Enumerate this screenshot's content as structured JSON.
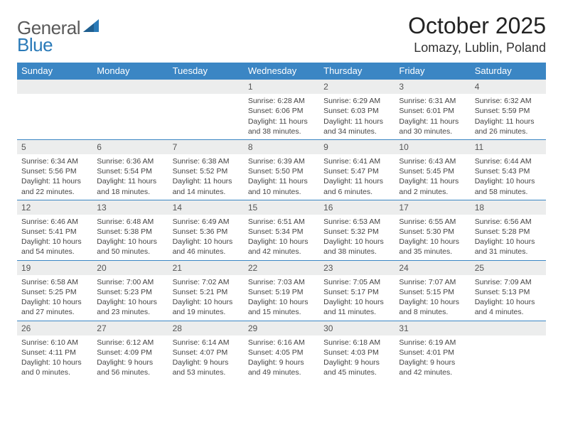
{
  "logo": {
    "textA": "General",
    "textB": "Blue"
  },
  "title": "October 2025",
  "location": "Lomazy, Lublin, Poland",
  "colors": {
    "header_bg": "#3b86c4",
    "header_text": "#ffffff",
    "daynum_bg": "#eceded",
    "row_border": "#3b86c4",
    "logo_gray": "#5a5a5a",
    "logo_blue": "#2a7ab8"
  },
  "weekdays": [
    "Sunday",
    "Monday",
    "Tuesday",
    "Wednesday",
    "Thursday",
    "Friday",
    "Saturday"
  ],
  "weeks": [
    [
      null,
      null,
      null,
      {
        "n": "1",
        "sr": "Sunrise: 6:28 AM",
        "ss": "Sunset: 6:06 PM",
        "dl": "Daylight: 11 hours and 38 minutes."
      },
      {
        "n": "2",
        "sr": "Sunrise: 6:29 AM",
        "ss": "Sunset: 6:03 PM",
        "dl": "Daylight: 11 hours and 34 minutes."
      },
      {
        "n": "3",
        "sr": "Sunrise: 6:31 AM",
        "ss": "Sunset: 6:01 PM",
        "dl": "Daylight: 11 hours and 30 minutes."
      },
      {
        "n": "4",
        "sr": "Sunrise: 6:32 AM",
        "ss": "Sunset: 5:59 PM",
        "dl": "Daylight: 11 hours and 26 minutes."
      }
    ],
    [
      {
        "n": "5",
        "sr": "Sunrise: 6:34 AM",
        "ss": "Sunset: 5:56 PM",
        "dl": "Daylight: 11 hours and 22 minutes."
      },
      {
        "n": "6",
        "sr": "Sunrise: 6:36 AM",
        "ss": "Sunset: 5:54 PM",
        "dl": "Daylight: 11 hours and 18 minutes."
      },
      {
        "n": "7",
        "sr": "Sunrise: 6:38 AM",
        "ss": "Sunset: 5:52 PM",
        "dl": "Daylight: 11 hours and 14 minutes."
      },
      {
        "n": "8",
        "sr": "Sunrise: 6:39 AM",
        "ss": "Sunset: 5:50 PM",
        "dl": "Daylight: 11 hours and 10 minutes."
      },
      {
        "n": "9",
        "sr": "Sunrise: 6:41 AM",
        "ss": "Sunset: 5:47 PM",
        "dl": "Daylight: 11 hours and 6 minutes."
      },
      {
        "n": "10",
        "sr": "Sunrise: 6:43 AM",
        "ss": "Sunset: 5:45 PM",
        "dl": "Daylight: 11 hours and 2 minutes."
      },
      {
        "n": "11",
        "sr": "Sunrise: 6:44 AM",
        "ss": "Sunset: 5:43 PM",
        "dl": "Daylight: 10 hours and 58 minutes."
      }
    ],
    [
      {
        "n": "12",
        "sr": "Sunrise: 6:46 AM",
        "ss": "Sunset: 5:41 PM",
        "dl": "Daylight: 10 hours and 54 minutes."
      },
      {
        "n": "13",
        "sr": "Sunrise: 6:48 AM",
        "ss": "Sunset: 5:38 PM",
        "dl": "Daylight: 10 hours and 50 minutes."
      },
      {
        "n": "14",
        "sr": "Sunrise: 6:49 AM",
        "ss": "Sunset: 5:36 PM",
        "dl": "Daylight: 10 hours and 46 minutes."
      },
      {
        "n": "15",
        "sr": "Sunrise: 6:51 AM",
        "ss": "Sunset: 5:34 PM",
        "dl": "Daylight: 10 hours and 42 minutes."
      },
      {
        "n": "16",
        "sr": "Sunrise: 6:53 AM",
        "ss": "Sunset: 5:32 PM",
        "dl": "Daylight: 10 hours and 38 minutes."
      },
      {
        "n": "17",
        "sr": "Sunrise: 6:55 AM",
        "ss": "Sunset: 5:30 PM",
        "dl": "Daylight: 10 hours and 35 minutes."
      },
      {
        "n": "18",
        "sr": "Sunrise: 6:56 AM",
        "ss": "Sunset: 5:28 PM",
        "dl": "Daylight: 10 hours and 31 minutes."
      }
    ],
    [
      {
        "n": "19",
        "sr": "Sunrise: 6:58 AM",
        "ss": "Sunset: 5:25 PM",
        "dl": "Daylight: 10 hours and 27 minutes."
      },
      {
        "n": "20",
        "sr": "Sunrise: 7:00 AM",
        "ss": "Sunset: 5:23 PM",
        "dl": "Daylight: 10 hours and 23 minutes."
      },
      {
        "n": "21",
        "sr": "Sunrise: 7:02 AM",
        "ss": "Sunset: 5:21 PM",
        "dl": "Daylight: 10 hours and 19 minutes."
      },
      {
        "n": "22",
        "sr": "Sunrise: 7:03 AM",
        "ss": "Sunset: 5:19 PM",
        "dl": "Daylight: 10 hours and 15 minutes."
      },
      {
        "n": "23",
        "sr": "Sunrise: 7:05 AM",
        "ss": "Sunset: 5:17 PM",
        "dl": "Daylight: 10 hours and 11 minutes."
      },
      {
        "n": "24",
        "sr": "Sunrise: 7:07 AM",
        "ss": "Sunset: 5:15 PM",
        "dl": "Daylight: 10 hours and 8 minutes."
      },
      {
        "n": "25",
        "sr": "Sunrise: 7:09 AM",
        "ss": "Sunset: 5:13 PM",
        "dl": "Daylight: 10 hours and 4 minutes."
      }
    ],
    [
      {
        "n": "26",
        "sr": "Sunrise: 6:10 AM",
        "ss": "Sunset: 4:11 PM",
        "dl": "Daylight: 10 hours and 0 minutes."
      },
      {
        "n": "27",
        "sr": "Sunrise: 6:12 AM",
        "ss": "Sunset: 4:09 PM",
        "dl": "Daylight: 9 hours and 56 minutes."
      },
      {
        "n": "28",
        "sr": "Sunrise: 6:14 AM",
        "ss": "Sunset: 4:07 PM",
        "dl": "Daylight: 9 hours and 53 minutes."
      },
      {
        "n": "29",
        "sr": "Sunrise: 6:16 AM",
        "ss": "Sunset: 4:05 PM",
        "dl": "Daylight: 9 hours and 49 minutes."
      },
      {
        "n": "30",
        "sr": "Sunrise: 6:18 AM",
        "ss": "Sunset: 4:03 PM",
        "dl": "Daylight: 9 hours and 45 minutes."
      },
      {
        "n": "31",
        "sr": "Sunrise: 6:19 AM",
        "ss": "Sunset: 4:01 PM",
        "dl": "Daylight: 9 hours and 42 minutes."
      },
      null
    ]
  ]
}
